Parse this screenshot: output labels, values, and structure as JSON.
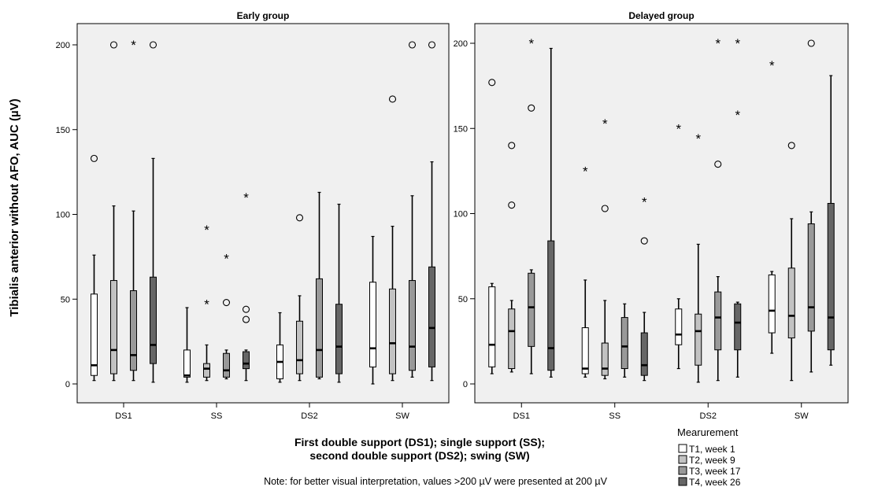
{
  "colors": {
    "T1": "#ffffff",
    "T2": "#c2c2c2",
    "T3": "#999999",
    "T4": "#666666",
    "panel_bg": "#f0f0f0"
  },
  "labels": {
    "ylabel": "Tibialis anterior without AFO, AUC (µV)",
    "xlabel_line1": "First double support (DS1); single support (SS);",
    "xlabel_line2": "second double support (DS2); swing (SW)",
    "note": "Note: for better visual interpretation, values >200 µV were presented at 200 µV",
    "legend_title": "Mearurement"
  },
  "chart_data": [
    {
      "type": "boxplot",
      "title": "Early group",
      "categories": [
        "DS1",
        "SS",
        "DS2",
        "SW"
      ],
      "yticks": [
        "0",
        "50",
        "100",
        "150",
        "200"
      ],
      "ylim": [
        -10,
        214
      ],
      "grid": false,
      "series": [
        {
          "name": "T1, week 1",
          "boxes": [
            {
              "lo": 2,
              "q1": 5,
              "med": 11,
              "q3": 53,
              "hi": 76,
              "outliers": [
                {
                  "v": 133,
                  "m": "o"
                }
              ]
            },
            {
              "lo": 1,
              "q1": 4,
              "med": 5,
              "q3": 20,
              "hi": 45,
              "outliers": []
            },
            {
              "lo": 1,
              "q1": 3,
              "med": 13,
              "q3": 23,
              "hi": 42,
              "outliers": []
            },
            {
              "lo": 0,
              "q1": 10,
              "med": 21,
              "q3": 60,
              "hi": 87,
              "outliers": []
            }
          ]
        },
        {
          "name": "T2, week 9",
          "boxes": [
            {
              "lo": 2,
              "q1": 6,
              "med": 20,
              "q3": 61,
              "hi": 105,
              "outliers": [
                {
                  "v": 200,
                  "m": "o"
                }
              ]
            },
            {
              "lo": 2,
              "q1": 4,
              "med": 9,
              "q3": 12,
              "hi": 23,
              "outliers": [
                {
                  "v": 47,
                  "m": "*"
                },
                {
                  "v": 91,
                  "m": "*"
                }
              ]
            },
            {
              "lo": 2,
              "q1": 6,
              "med": 14,
              "q3": 37,
              "hi": 52,
              "outliers": [
                {
                  "v": 98,
                  "m": "o"
                }
              ]
            },
            {
              "lo": 2,
              "q1": 6,
              "med": 24,
              "q3": 56,
              "hi": 93,
              "outliers": [
                {
                  "v": 168,
                  "m": "o"
                }
              ]
            }
          ]
        },
        {
          "name": "T3, week 17",
          "boxes": [
            {
              "lo": 2,
              "q1": 8,
              "med": 17,
              "q3": 55,
              "hi": 102,
              "outliers": [
                {
                  "v": 200,
                  "m": "*"
                }
              ]
            },
            {
              "lo": 3,
              "q1": 4,
              "med": 8,
              "q3": 18,
              "hi": 20,
              "outliers": [
                {
                  "v": 48,
                  "m": "o"
                },
                {
                  "v": 74,
                  "m": "*"
                }
              ]
            },
            {
              "lo": 3,
              "q1": 4,
              "med": 20,
              "q3": 62,
              "hi": 113,
              "outliers": []
            },
            {
              "lo": 4,
              "q1": 8,
              "med": 22,
              "q3": 61,
              "hi": 111,
              "outliers": [
                {
                  "v": 200,
                  "m": "o"
                }
              ]
            }
          ]
        },
        {
          "name": "T4, week 26",
          "boxes": [
            {
              "lo": 1,
              "q1": 12,
              "med": 23,
              "q3": 63,
              "hi": 133,
              "outliers": [
                {
                  "v": 200,
                  "m": "o"
                }
              ]
            },
            {
              "lo": 2,
              "q1": 9,
              "med": 12,
              "q3": 19,
              "hi": 20,
              "outliers": [
                {
                  "v": 38,
                  "m": "o"
                },
                {
                  "v": 44,
                  "m": "o"
                },
                {
                  "v": 110,
                  "m": "*"
                }
              ]
            },
            {
              "lo": 1,
              "q1": 6,
              "med": 22,
              "q3": 47,
              "hi": 106,
              "outliers": []
            },
            {
              "lo": 2,
              "q1": 10,
              "med": 33,
              "q3": 69,
              "hi": 131,
              "outliers": [
                {
                  "v": 200,
                  "m": "o"
                }
              ]
            }
          ]
        }
      ]
    },
    {
      "type": "boxplot",
      "title": "Delayed group",
      "categories": [
        "DS1",
        "SS",
        "DS2",
        "SW"
      ],
      "yticks": [
        "0",
        "50",
        "100",
        "150",
        "200"
      ],
      "ylim": [
        -10,
        214
      ],
      "grid": false,
      "series": [
        {
          "name": "T1, week 1",
          "boxes": [
            {
              "lo": 6,
              "q1": 10,
              "med": 23,
              "q3": 57,
              "hi": 59,
              "outliers": [
                {
                  "v": 177,
                  "m": "o"
                }
              ]
            },
            {
              "lo": 4,
              "q1": 6,
              "med": 9,
              "q3": 33,
              "hi": 61,
              "outliers": [
                {
                  "v": 125,
                  "m": "*"
                }
              ]
            },
            {
              "lo": 9,
              "q1": 23,
              "med": 29,
              "q3": 44,
              "hi": 50,
              "outliers": [
                {
                  "v": 150,
                  "m": "*"
                }
              ]
            },
            {
              "lo": 18,
              "q1": 30,
              "med": 43,
              "q3": 64,
              "hi": 66,
              "outliers": [
                {
                  "v": 187,
                  "m": "*"
                }
              ]
            }
          ]
        },
        {
          "name": "T2, week 9",
          "boxes": [
            {
              "lo": 7,
              "q1": 9,
              "med": 31,
              "q3": 44,
              "hi": 49,
              "outliers": [
                {
                  "v": 105,
                  "m": "o"
                },
                {
                  "v": 140,
                  "m": "o"
                }
              ]
            },
            {
              "lo": 3,
              "q1": 5,
              "med": 9,
              "q3": 24,
              "hi": 49,
              "outliers": [
                {
                  "v": 103,
                  "m": "o"
                },
                {
                  "v": 153,
                  "m": "*"
                }
              ]
            },
            {
              "lo": 1,
              "q1": 11,
              "med": 31,
              "q3": 41,
              "hi": 82,
              "outliers": [
                {
                  "v": 144,
                  "m": "*"
                }
              ]
            },
            {
              "lo": 2,
              "q1": 27,
              "med": 40,
              "q3": 68,
              "hi": 97,
              "outliers": [
                {
                  "v": 140,
                  "m": "o"
                }
              ]
            }
          ]
        },
        {
          "name": "T3, week 17",
          "boxes": [
            {
              "lo": 6,
              "q1": 22,
              "med": 45,
              "q3": 65,
              "hi": 67,
              "outliers": [
                {
                  "v": 162,
                  "m": "o"
                },
                {
                  "v": 200,
                  "m": "*"
                }
              ]
            },
            {
              "lo": 4,
              "q1": 9,
              "med": 22,
              "q3": 39,
              "hi": 47,
              "outliers": []
            },
            {
              "lo": 2,
              "q1": 20,
              "med": 39,
              "q3": 54,
              "hi": 63,
              "outliers": [
                {
                  "v": 129,
                  "m": "o"
                },
                {
                  "v": 200,
                  "m": "*"
                }
              ]
            },
            {
              "lo": 7,
              "q1": 31,
              "med": 45,
              "q3": 94,
              "hi": 101,
              "outliers": [
                {
                  "v": 200,
                  "m": "o"
                }
              ]
            }
          ]
        },
        {
          "name": "T4, week 26",
          "boxes": [
            {
              "lo": 4,
              "q1": 8,
              "med": 21,
              "q3": 84,
              "hi": 197,
              "outliers": []
            },
            {
              "lo": 2,
              "q1": 5,
              "med": 11,
              "q3": 30,
              "hi": 42,
              "outliers": [
                {
                  "v": 84,
                  "m": "o"
                },
                {
                  "v": 107,
                  "m": "*"
                }
              ]
            },
            {
              "lo": 4,
              "q1": 20,
              "med": 36,
              "q3": 47,
              "hi": 48,
              "outliers": [
                {
                  "v": 158,
                  "m": "*"
                },
                {
                  "v": 200,
                  "m": "*"
                }
              ]
            },
            {
              "lo": 11,
              "q1": 20,
              "med": 39,
              "q3": 106,
              "hi": 181,
              "outliers": []
            }
          ]
        }
      ]
    }
  ]
}
